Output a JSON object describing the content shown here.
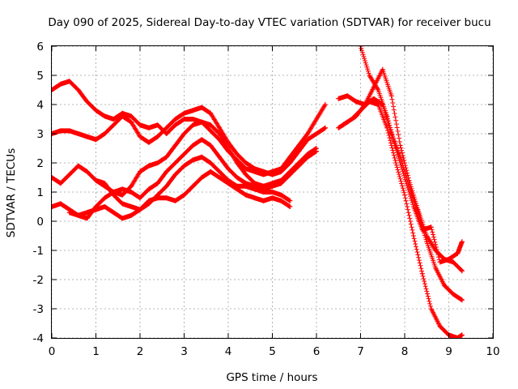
{
  "chart_data": {
    "type": "scatter",
    "title": "Day 090 of 2025, Sidereal Day-to-day VTEC variation (SDTVAR) for receiver bucu",
    "xlabel": "GPS time / hours",
    "ylabel": "SDTVAR / TECUs",
    "xlim": [
      0,
      10
    ],
    "ylim": [
      -4,
      6
    ],
    "xticks": [
      "0",
      "1",
      "2",
      "3",
      "4",
      "5",
      "6",
      "7",
      "8",
      "9",
      "10"
    ],
    "yticks": [
      "-4",
      "-3",
      "-2",
      "-1",
      "0",
      "1",
      "2",
      "3",
      "4",
      "5",
      "6"
    ],
    "grid": true,
    "marker": "+",
    "color": "#ff0000",
    "series": [
      {
        "x": [
          0.0,
          0.2,
          0.4,
          0.6,
          0.8,
          1.0,
          1.2,
          1.4,
          1.6,
          1.8,
          2.0,
          2.2,
          2.4,
          2.6,
          2.8,
          3.0,
          3.2,
          3.4,
          3.6,
          3.8,
          4.0,
          4.2,
          4.4,
          4.6,
          4.8,
          5.0,
          5.2,
          5.4,
          5.6,
          5.8,
          6.0,
          6.2
        ],
        "y": [
          4.5,
          4.7,
          4.8,
          4.5,
          4.1,
          3.8,
          3.6,
          3.5,
          3.7,
          3.6,
          3.3,
          3.2,
          3.3,
          3.0,
          3.3,
          3.5,
          3.5,
          3.4,
          3.1,
          2.8,
          2.4,
          2.1,
          1.8,
          1.7,
          1.6,
          1.7,
          1.8,
          2.2,
          2.6,
          3.0,
          3.5,
          4.0
        ]
      },
      {
        "x": [
          0.0,
          0.2,
          0.4,
          0.6,
          0.8,
          1.0,
          1.2,
          1.4,
          1.6,
          1.8,
          2.0,
          2.2,
          2.4,
          2.6,
          2.8,
          3.0,
          3.2,
          3.4,
          3.6,
          3.8,
          4.0,
          4.2,
          4.4,
          4.6,
          4.8,
          5.0,
          5.2,
          5.4,
          5.6,
          5.8,
          6.0,
          6.2
        ],
        "y": [
          3.0,
          3.1,
          3.1,
          3.0,
          2.9,
          2.8,
          3.0,
          3.3,
          3.6,
          3.4,
          2.9,
          2.7,
          2.9,
          3.2,
          3.5,
          3.7,
          3.8,
          3.9,
          3.7,
          3.2,
          2.7,
          2.3,
          2.0,
          1.8,
          1.7,
          1.6,
          1.7,
          2.0,
          2.4,
          2.8,
          3.0,
          3.2
        ]
      },
      {
        "x": [
          0.0,
          0.2,
          0.4,
          0.6,
          0.8,
          1.0,
          1.2,
          1.4,
          1.6,
          1.8,
          2.0,
          2.2,
          2.4,
          2.6,
          2.8,
          3.0,
          3.2,
          3.4,
          3.6,
          3.8,
          4.0,
          4.2,
          4.4,
          4.6,
          4.8,
          5.0,
          5.2,
          5.4,
          5.6,
          5.8,
          6.0
        ],
        "y": [
          1.5,
          1.3,
          1.6,
          1.9,
          1.7,
          1.4,
          1.2,
          1.0,
          0.9,
          1.2,
          1.7,
          1.9,
          2.0,
          2.2,
          2.6,
          3.0,
          3.3,
          3.4,
          3.3,
          3.0,
          2.5,
          2.0,
          1.6,
          1.3,
          1.2,
          1.3,
          1.4,
          1.7,
          2.0,
          2.3,
          2.5
        ]
      },
      {
        "x": [
          0.0,
          0.2,
          0.4,
          0.6,
          0.8,
          1.0,
          1.2,
          1.4,
          1.6,
          1.8,
          2.0,
          2.2,
          2.4,
          2.6,
          2.8,
          3.0,
          3.2,
          3.4,
          3.6,
          3.8,
          4.0,
          4.2,
          4.4,
          4.6,
          4.8,
          5.0,
          5.2,
          5.4,
          5.6,
          5.8,
          6.0
        ],
        "y": [
          0.5,
          0.6,
          0.4,
          0.2,
          0.1,
          0.5,
          0.8,
          1.0,
          1.1,
          1.0,
          0.8,
          1.1,
          1.3,
          1.7,
          2.0,
          2.3,
          2.6,
          2.8,
          2.6,
          2.2,
          1.8,
          1.5,
          1.3,
          1.2,
          1.1,
          1.2,
          1.3,
          1.6,
          1.9,
          2.2,
          2.4
        ]
      },
      {
        "x": [
          0.4,
          0.6,
          0.8,
          1.0,
          1.2,
          1.4,
          1.6,
          1.8,
          2.0,
          2.2,
          2.4,
          2.6,
          2.8,
          3.0,
          3.2,
          3.4,
          3.6,
          3.8,
          4.0,
          4.2,
          4.4,
          4.6,
          4.8,
          5.0,
          5.2,
          5.4
        ],
        "y": [
          0.3,
          0.2,
          0.3,
          0.4,
          0.5,
          0.3,
          0.1,
          0.2,
          0.4,
          0.7,
          0.8,
          0.8,
          0.7,
          0.9,
          1.2,
          1.5,
          1.7,
          1.5,
          1.3,
          1.1,
          0.9,
          0.8,
          0.7,
          0.8,
          0.7,
          0.5
        ]
      },
      {
        "x": [
          1.0,
          1.2,
          1.4,
          1.6,
          1.8,
          2.0,
          2.2,
          2.4,
          2.6,
          2.8,
          3.0,
          3.2,
          3.4,
          3.6,
          3.8,
          4.0,
          4.2,
          4.4,
          4.6,
          4.8,
          5.0,
          5.2,
          5.4
        ],
        "y": [
          1.4,
          1.3,
          0.9,
          0.6,
          0.5,
          0.4,
          0.6,
          0.9,
          1.2,
          1.6,
          1.9,
          2.1,
          2.2,
          2.0,
          1.7,
          1.4,
          1.2,
          1.2,
          1.1,
          1.0,
          1.0,
          0.9,
          0.7
        ]
      },
      {
        "x": [
          6.5,
          6.7,
          6.9,
          7.1,
          7.3,
          7.5,
          7.7,
          7.9,
          8.1,
          8.3,
          8.5,
          8.7,
          8.9,
          9.1,
          9.3
        ],
        "y": [
          4.2,
          4.3,
          4.1,
          4.0,
          4.2,
          4.0,
          3.0,
          2.2,
          1.2,
          0.3,
          -0.7,
          -1.6,
          -2.2,
          -2.5,
          -2.7
        ]
      },
      {
        "x": [
          6.5,
          6.7,
          6.9,
          7.1,
          7.3,
          7.5,
          7.7,
          7.9,
          8.1,
          8.3,
          8.5,
          8.7,
          8.9,
          9.1,
          9.3
        ],
        "y": [
          3.2,
          3.4,
          3.6,
          4.0,
          4.6,
          5.2,
          4.3,
          2.6,
          1.4,
          0.4,
          -0.5,
          -1.0,
          -1.3,
          -1.4,
          -1.7
        ]
      },
      {
        "x": [
          7.0,
          7.2,
          7.4,
          7.6,
          7.8,
          8.0,
          8.2,
          8.4,
          8.6,
          8.8,
          9.0,
          9.2,
          9.3
        ],
        "y": [
          6.0,
          5.0,
          4.5,
          3.6,
          2.5,
          1.5,
          0.5,
          -0.3,
          -0.2,
          -1.4,
          -1.3,
          -1.1,
          -0.7
        ]
      },
      {
        "x": [
          6.6,
          6.8,
          7.0,
          7.2,
          7.4,
          7.6,
          7.8,
          8.0,
          8.2,
          8.4,
          8.6,
          8.8,
          9.0,
          9.2,
          9.3
        ],
        "y": [
          3.3,
          3.5,
          3.8,
          4.1,
          4.0,
          3.2,
          2.0,
          0.9,
          -0.5,
          -1.8,
          -3.0,
          -3.6,
          -3.9,
          -4.0,
          -3.9
        ]
      }
    ]
  }
}
